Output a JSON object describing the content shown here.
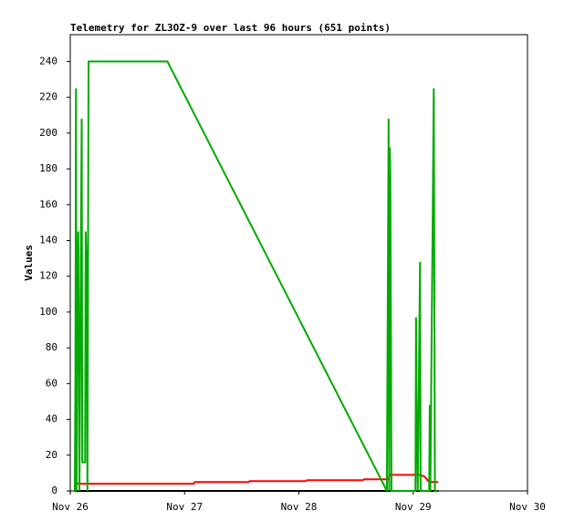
{
  "chart_data": {
    "type": "line",
    "title": "Telemetry for ZL3OZ-9 over last 96 hours (651 points)",
    "y_label": "Values",
    "xlim": [
      26,
      30
    ],
    "xticks": [
      {
        "value": 26,
        "label": "Nov 26"
      },
      {
        "value": 27,
        "label": "Nov 27"
      },
      {
        "value": 28,
        "label": "Nov 28"
      },
      {
        "value": 29,
        "label": "Nov 29"
      },
      {
        "value": 30,
        "label": "Nov 30"
      }
    ],
    "ylim": [
      0,
      255
    ],
    "yticks": [
      0,
      20,
      40,
      60,
      80,
      100,
      120,
      140,
      160,
      180,
      200,
      220,
      240
    ],
    "series": [
      {
        "color": "#000000",
        "x": [
          26.04,
          29.22
        ],
        "values": [
          0,
          0
        ]
      },
      {
        "color": "#ff0000",
        "x": [
          26.04,
          27.08,
          27.09,
          27.56,
          27.57,
          28.06,
          28.07,
          28.56,
          28.57,
          28.78,
          28.8,
          29.06,
          29.1,
          29.14,
          29.22
        ],
        "values": [
          4,
          4,
          5,
          5,
          5.5,
          5.5,
          6,
          6,
          6.5,
          6.5,
          9,
          9,
          8,
          5,
          5
        ]
      },
      {
        "color": "#00aa00",
        "x": [
          26.04,
          26.045,
          26.05,
          26.055,
          26.06,
          26.065,
          26.07,
          26.08,
          26.1,
          26.105,
          26.13,
          26.135,
          26.145,
          26.15,
          26.16,
          26.85,
          28.77,
          28.785,
          28.79,
          28.795,
          28.8,
          28.805,
          28.81,
          29.02,
          29.025,
          29.03,
          29.04,
          29.06,
          29.065,
          29.14,
          29.145,
          29.15,
          29.165,
          29.17,
          29.18,
          29.19,
          29.21
        ],
        "values": [
          0,
          65,
          225,
          0,
          80,
          128,
          145,
          0,
          208,
          16,
          16,
          145,
          120,
          0,
          240,
          240,
          0,
          208,
          0,
          192,
          176,
          88,
          0,
          0,
          97,
          48,
          0,
          128,
          0,
          0,
          48,
          0,
          112,
          145,
          225,
          0,
          0
        ]
      }
    ]
  }
}
